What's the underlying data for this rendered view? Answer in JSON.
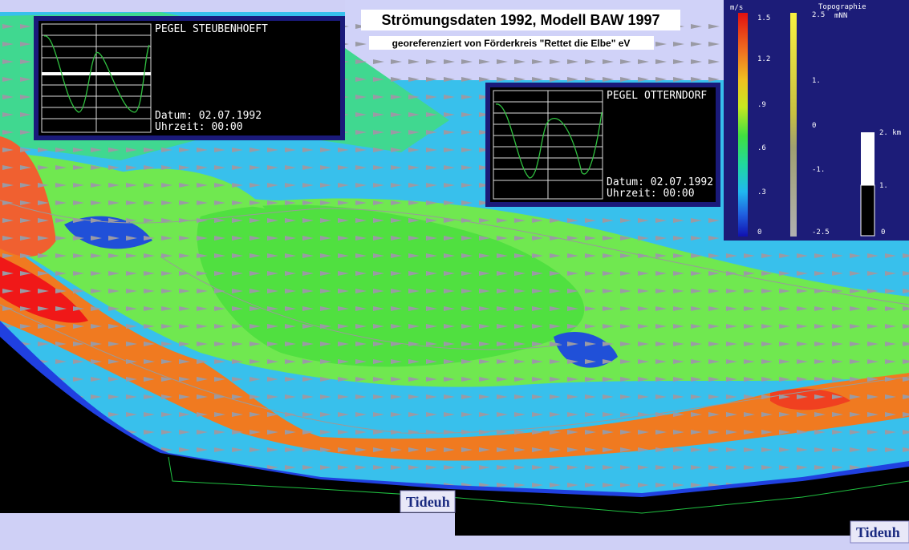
{
  "header": {
    "title": "Strömungsdaten 1992, Modell BAW 1997",
    "subtitle": "georeferenziert von Förderkreis \"Rettet die Elbe\" eV"
  },
  "gauges": [
    {
      "name": "PEGEL STEUBENHOEFT",
      "date": "Datum: 02.07.1992",
      "time": "Uhrzeit: 00:00"
    },
    {
      "name": "PEGEL OTTERNDORF",
      "date": "Datum: 02.07.1992",
      "time": "Uhrzeit: 00:00"
    }
  ],
  "legend": {
    "speed_unit": "m/s",
    "speed_labels": [
      "1.5",
      "1.2",
      ".9",
      ".6",
      ".3",
      "0"
    ],
    "topo_title": "Topographie",
    "topo_unit": "mNN",
    "topo_labels": [
      "2.5",
      "1.",
      "0",
      "-1.",
      "-2.5"
    ],
    "scale_labels": [
      "2. km",
      "1.",
      "0"
    ]
  },
  "buttons": [
    "Tideuh",
    "Tideuh"
  ]
}
